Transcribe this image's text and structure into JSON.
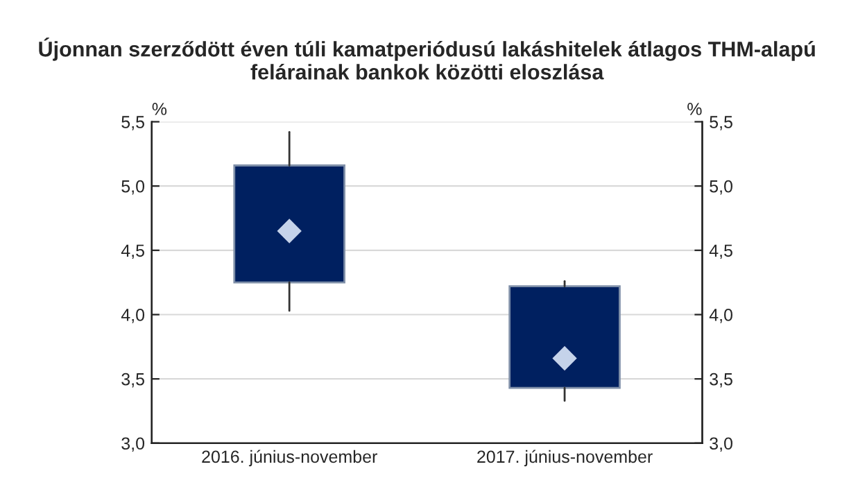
{
  "chart_data": {
    "type": "box",
    "title": "Újonnan szerződött éven túli kamatperiódusú lakáshitelek átlagos THM-alapú\nfelárainak bankok közötti eloszlása",
    "ylabel": "%",
    "y2label": "%",
    "categories": [
      "2016. június-november",
      "2017. június-november"
    ],
    "boxes": [
      {
        "low": 4.03,
        "q1": 4.25,
        "median": 4.65,
        "q3": 5.16,
        "high": 5.42
      },
      {
        "low": 3.33,
        "q1": 3.43,
        "median": 3.66,
        "q3": 4.22,
        "high": 4.26
      }
    ],
    "color": "#002060",
    "marker": "diamond",
    "ylim": [
      3.0,
      5.5
    ],
    "yticks": [
      {
        "value": 3.0,
        "label": "3,0"
      },
      {
        "value": 3.5,
        "label": "3,5"
      },
      {
        "value": 4.0,
        "label": "4,0"
      },
      {
        "value": 4.5,
        "label": "4,5"
      },
      {
        "value": 5.0,
        "label": "5,0"
      },
      {
        "value": 5.5,
        "label": "5,5"
      }
    ],
    "y2lim": [
      3.0,
      5.5
    ],
    "y2ticks": [
      {
        "value": 3.0,
        "label": "3,0"
      },
      {
        "value": 3.5,
        "label": "3,5"
      },
      {
        "value": 4.0,
        "label": "4,0"
      },
      {
        "value": 4.5,
        "label": "4,5"
      },
      {
        "value": 5.0,
        "label": "5,0"
      },
      {
        "value": 5.5,
        "label": "5,5"
      }
    ],
    "grid": "y",
    "legend": false
  }
}
